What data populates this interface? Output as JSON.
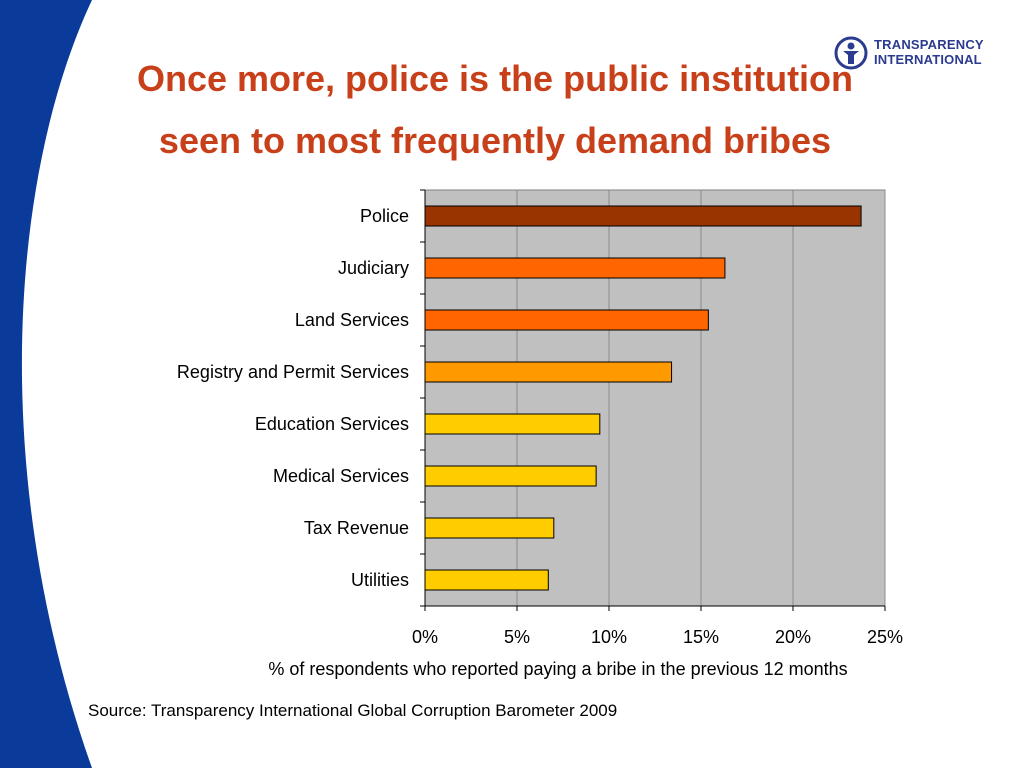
{
  "slide": {
    "title_line1": "Once more, police is the public institution",
    "title_line2": "seen to most frequently demand bribes",
    "source": "Source: Transparency International Global Corruption Barometer 2009",
    "logo_line1": "TRANSPARENCY",
    "logo_line2": "INTERNATIONAL",
    "logo_icon": "ti-figure-circle-icon"
  },
  "colors": {
    "title": "#c8401a",
    "side_band": "#0a3a9a",
    "plot_bg": "#c0c0c0",
    "grid": "#8c8c8c",
    "logo": "#2b3b8f"
  },
  "chart_data": {
    "type": "bar",
    "orientation": "horizontal",
    "categories": [
      "Police",
      "Judiciary",
      "Land Services",
      "Registry and Permit Services",
      "Education Services",
      "Medical Services",
      "Tax Revenue",
      "Utilities"
    ],
    "values": [
      23.7,
      16.3,
      15.4,
      13.4,
      9.5,
      9.3,
      7.0,
      6.7
    ],
    "bar_colors": [
      "#993300",
      "#ff6600",
      "#ff6600",
      "#ff9900",
      "#ffcc00",
      "#ffcc00",
      "#ffcc00",
      "#ffcc00"
    ],
    "xlabel": "% of respondents who reported paying a bribe in the previous 12 months",
    "ylabel": "",
    "xlim": [
      0,
      25
    ],
    "xticks": [
      0,
      5,
      10,
      15,
      20,
      25
    ],
    "xtick_labels": [
      "0%",
      "5%",
      "10%",
      "15%",
      "20%",
      "25%"
    ],
    "grid": true,
    "legend": "none"
  }
}
